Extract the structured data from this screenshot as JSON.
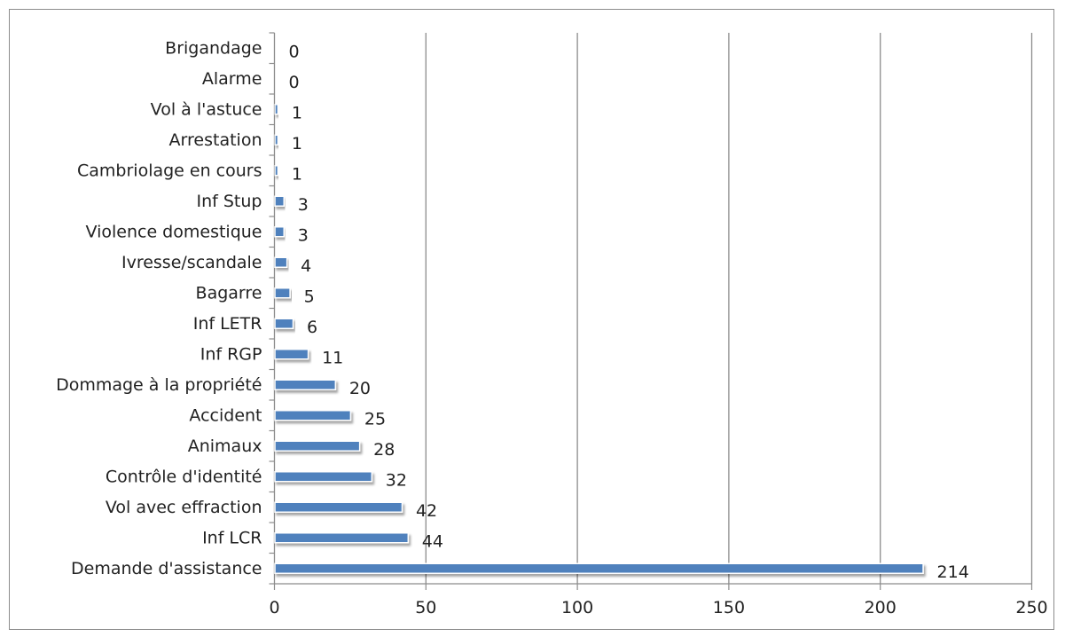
{
  "chart_data": {
    "type": "bar",
    "orientation": "horizontal",
    "title": "",
    "xlabel": "",
    "ylabel": "",
    "categories": [
      "Demande d'assistance",
      "Inf LCR",
      "Vol avec effraction",
      "Contrôle d'identité",
      "Animaux",
      "Accident",
      "Dommage à la propriété",
      "Inf RGP",
      "Inf LETR",
      "Bagarre",
      "Ivresse/scandale",
      "Violence domestique",
      "Inf Stup",
      "Cambriolage en cours",
      "Arrestation",
      "Vol à l'astuce",
      "Alarme",
      "Brigandage"
    ],
    "values": [
      214,
      44,
      42,
      32,
      28,
      25,
      20,
      11,
      6,
      5,
      4,
      3,
      3,
      1,
      1,
      1,
      0,
      0
    ],
    "xlim": [
      0,
      250
    ],
    "xticks": [
      0,
      50,
      100,
      150,
      200,
      250
    ],
    "grid": "vertical",
    "legend": "none",
    "bar_color": "#4f81bd",
    "grid_color": "#8c8c8c"
  }
}
